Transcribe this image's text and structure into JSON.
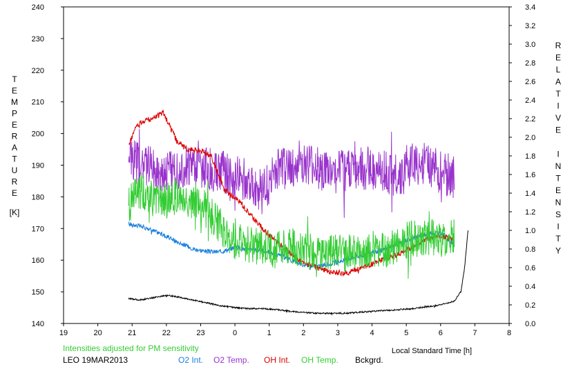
{
  "chart_data": {
    "type": "line",
    "xlabel": "Local Standard Time [h]",
    "x_ticks": [
      "19",
      "20",
      "21",
      "22",
      "23",
      "0",
      "1",
      "2",
      "3",
      "4",
      "5",
      "6",
      "7",
      "8"
    ],
    "y_left_label": "TEMPERATURE",
    "y_left_unit": "[K]",
    "y_left_ticks": [
      140,
      150,
      160,
      170,
      180,
      190,
      200,
      210,
      220,
      230,
      240
    ],
    "y_right_label": "RELATIVE INTENSITY",
    "y_right_ticks": [
      "0.0",
      "0.2",
      "0.4",
      "0.6",
      "0.8",
      "1.0",
      "1.2",
      "1.4",
      "1.6",
      "1.8",
      "2.0",
      "2.2",
      "2.4",
      "2.6",
      "2.8",
      "3.0",
      "3.2",
      "3.4"
    ],
    "xlim": [
      19,
      32
    ],
    "ylim_left": [
      140,
      240
    ],
    "ylim_right": [
      0,
      3.4
    ],
    "grid": false,
    "series": [
      {
        "name": "O2 Int.",
        "axis": "right",
        "color": "#1a7fdc",
        "noise": 0.025,
        "x": [
          20.9,
          21.3,
          21.8,
          22.3,
          22.8,
          23.2,
          23.6,
          24.0,
          24.4,
          24.8,
          25.2,
          25.6,
          26.0,
          26.4,
          26.8,
          27.2,
          27.6,
          28.0,
          28.4,
          28.8,
          29.2,
          29.6,
          30.0,
          30.4
        ],
        "y": [
          1.07,
          1.04,
          0.97,
          0.88,
          0.8,
          0.77,
          0.77,
          0.82,
          0.79,
          0.79,
          0.74,
          0.69,
          0.63,
          0.61,
          0.64,
          0.68,
          0.72,
          0.76,
          0.8,
          0.86,
          0.92,
          0.96,
          0.98,
          0.83
        ]
      },
      {
        "name": "O2 Temp.",
        "axis": "left",
        "color": "#9933cc",
        "noise": 7,
        "x": [
          20.9,
          21.3,
          21.8,
          22.3,
          22.8,
          23.2,
          23.6,
          24.0,
          24.4,
          24.8,
          25.2,
          25.6,
          26.0,
          26.4,
          26.8,
          27.2,
          27.6,
          28.0,
          28.4,
          28.8,
          29.2,
          29.6,
          30.0,
          30.4
        ],
        "y": [
          192,
          190,
          188,
          189,
          190,
          189,
          188,
          186,
          186,
          181,
          188,
          189,
          190,
          189,
          187,
          188,
          189,
          189,
          188,
          186,
          191,
          190,
          188,
          186
        ]
      },
      {
        "name": "OH Int.",
        "axis": "right",
        "color": "#dd0000",
        "noise": 0.03,
        "x": [
          20.9,
          21.1,
          21.3,
          21.6,
          21.9,
          22.3,
          22.6,
          23.0,
          23.3,
          23.7,
          24.1,
          24.5,
          24.9,
          25.3,
          25.6,
          26.0,
          26.4,
          26.8,
          27.2,
          27.6,
          28.0,
          28.4,
          28.8,
          29.2,
          29.6,
          30.0,
          30.4
        ],
        "y": [
          1.9,
          2.1,
          2.17,
          2.2,
          2.27,
          1.96,
          1.87,
          1.86,
          1.8,
          1.43,
          1.32,
          1.15,
          0.98,
          0.85,
          0.76,
          0.65,
          0.6,
          0.55,
          0.54,
          0.58,
          0.64,
          0.7,
          0.75,
          0.82,
          0.91,
          0.94,
          0.9
        ]
      },
      {
        "name": "OH Temp.",
        "axis": "left",
        "color": "#33cc33",
        "noise": 6,
        "x": [
          20.9,
          21.3,
          21.8,
          22.3,
          22.8,
          23.2,
          23.6,
          24.0,
          24.4,
          24.8,
          25.2,
          25.6,
          26.0,
          26.4,
          26.8,
          27.2,
          27.6,
          28.0,
          28.4,
          28.8,
          29.2,
          29.6,
          30.0,
          30.4
        ],
        "y": [
          178,
          182,
          178,
          180,
          178,
          176,
          170,
          166,
          165,
          164,
          163,
          165,
          163,
          162,
          163,
          162,
          163,
          164,
          163,
          165,
          167,
          167,
          167,
          167
        ]
      },
      {
        "name": "Bckgrd.",
        "axis": "right",
        "color": "#000000",
        "noise": 0.008,
        "x": [
          20.9,
          21.2,
          21.5,
          21.8,
          22.1,
          22.4,
          22.8,
          23.2,
          23.6,
          24.0,
          24.4,
          24.8,
          25.2,
          25.6,
          26.0,
          26.4,
          26.8,
          27.2,
          27.6,
          28.0,
          28.4,
          28.8,
          29.2,
          29.6,
          30.0,
          30.4,
          30.6,
          30.7,
          30.8
        ],
        "y": [
          0.27,
          0.25,
          0.27,
          0.29,
          0.3,
          0.28,
          0.25,
          0.22,
          0.19,
          0.17,
          0.16,
          0.16,
          0.15,
          0.13,
          0.12,
          0.11,
          0.11,
          0.11,
          0.12,
          0.13,
          0.14,
          0.15,
          0.16,
          0.18,
          0.2,
          0.24,
          0.35,
          0.6,
          1.0
        ]
      }
    ]
  },
  "legend_note": "Intensities adjusted for PM sensitivity",
  "station": "LEO 19MAR2013",
  "legend": [
    {
      "label": "O2 Int.",
      "color": "#1a7fdc"
    },
    {
      "label": "O2 Temp.",
      "color": "#9933cc"
    },
    {
      "label": "OH Int.",
      "color": "#dd0000"
    },
    {
      "label": "OH Temp.",
      "color": "#33cc33"
    },
    {
      "label": "Bckgrd.",
      "color": "#000000"
    }
  ],
  "note_color": "#33cc33"
}
